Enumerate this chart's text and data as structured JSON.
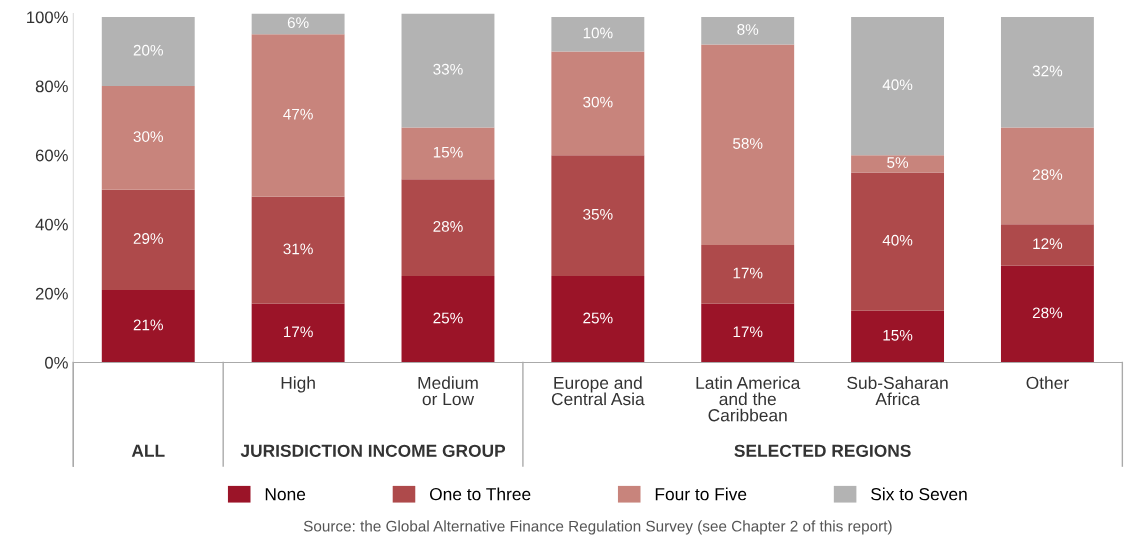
{
  "chart_data": {
    "type": "bar",
    "stacked": true,
    "categories": [
      null,
      "High",
      "Medium\nor Low",
      "Europe and\nCentral Asia",
      "Latin America\nand the\nCaribbean",
      "Sub-Saharan\nAfrica",
      "Other"
    ],
    "series": [
      {
        "name": "None",
        "color": "#9b1428",
        "values": [
          21,
          17,
          25,
          25,
          17,
          15,
          28
        ],
        "value_labels": [
          "21%",
          "17%",
          "25%",
          "25%",
          "17%",
          "15%",
          "28%"
        ]
      },
      {
        "name": "One to Three",
        "color": "#ae4a4b",
        "values": [
          29,
          31,
          28,
          35,
          17,
          40,
          12
        ],
        "value_labels": [
          "29%",
          "31%",
          "28%",
          "35%",
          "17%",
          "40%",
          "12%"
        ]
      },
      {
        "name": "Four to Five",
        "color": "#c8847c",
        "values": [
          30,
          47,
          15,
          30,
          58,
          5,
          28
        ],
        "value_labels": [
          "30%",
          "47%",
          "15%",
          "30%",
          "58%",
          "5%",
          "28%"
        ]
      },
      {
        "name": "Six to Seven",
        "color": "#b3b3b3",
        "values": [
          20,
          6,
          33,
          10,
          8,
          40,
          32
        ],
        "value_labels": [
          "20%",
          "6%",
          "33%",
          "10%",
          "8%",
          "40%",
          "32%"
        ]
      }
    ],
    "ylim": [
      0,
      101
    ],
    "yticks": [
      {
        "value": 0,
        "label": "0%"
      },
      {
        "value": 20,
        "label": "20%"
      },
      {
        "value": 40,
        "label": "40%"
      },
      {
        "value": 60,
        "label": "60%"
      },
      {
        "value": 80,
        "label": "80%"
      },
      {
        "value": 100,
        "label": "100%"
      }
    ],
    "grid": false,
    "legend": "bottom",
    "annotations": [
      "ALL",
      "JURISDICTION INCOME GROUP",
      "SELECTED REGIONS",
      "Source: the Global Alternative Finance Regulation Survey (see Chapter 2 of this report)"
    ]
  }
}
